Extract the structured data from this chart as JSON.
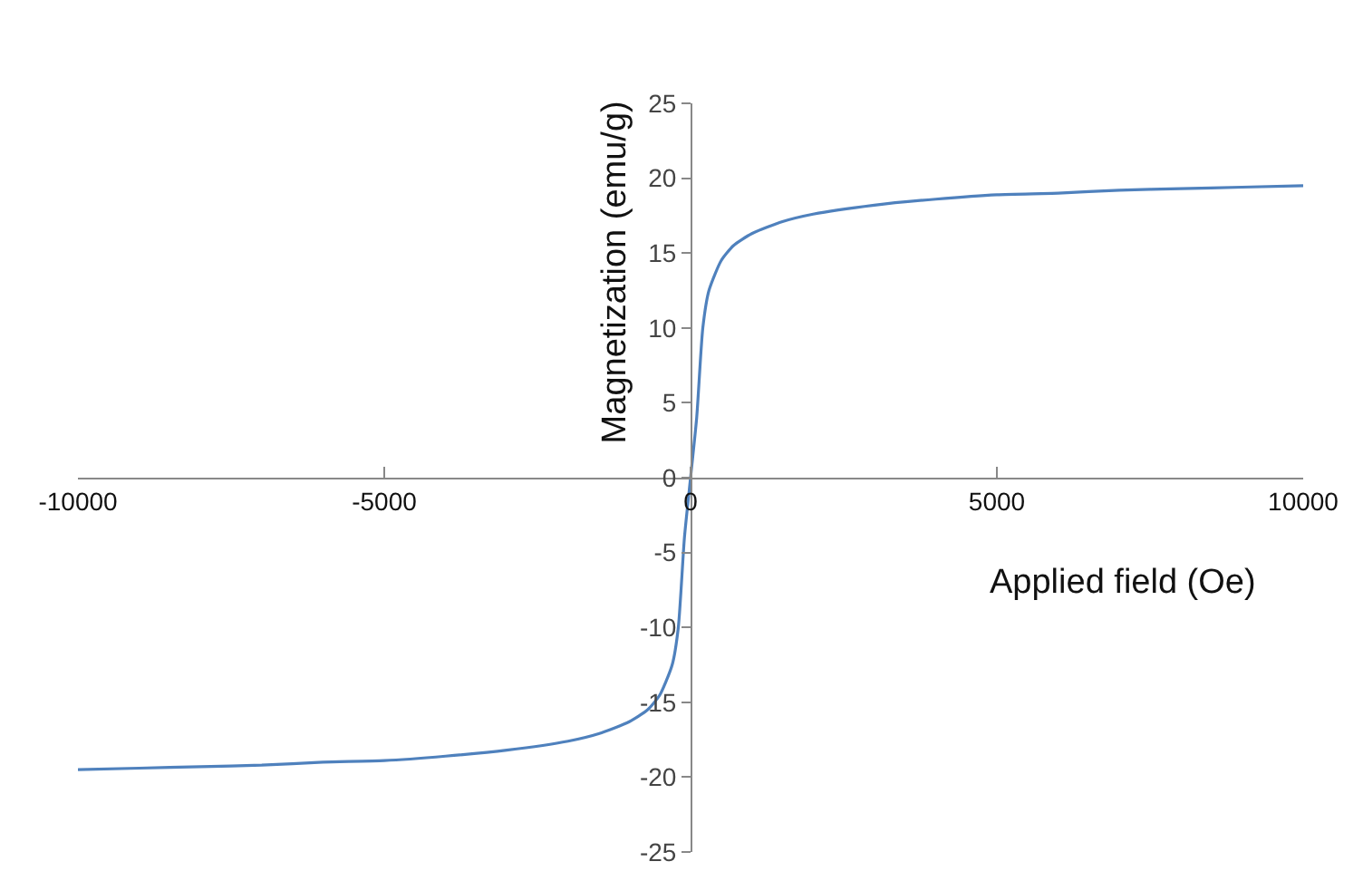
{
  "chart_data": {
    "type": "line",
    "xlabel": "Applied field (Oe)",
    "ylabel": "Magnetization (emu/g)",
    "x": [
      -10000,
      -9000,
      -8000,
      -7000,
      -6000,
      -5000,
      -4000,
      -3000,
      -2000,
      -1500,
      -1000,
      -700,
      -500,
      -300,
      -200,
      -100,
      0,
      100,
      200,
      300,
      500,
      700,
      1000,
      1500,
      2000,
      3000,
      4000,
      5000,
      6000,
      7000,
      8000,
      9000,
      10000
    ],
    "series": [
      {
        "color": "#4f81bd",
        "values": [
          -19.5,
          -19.4,
          -19.3,
          -19.2,
          -19.0,
          -18.9,
          -18.6,
          -18.2,
          -17.6,
          -17.1,
          -16.3,
          -15.5,
          -14.5,
          -12.5,
          -10,
          -4,
          0,
          4,
          10,
          12.5,
          14.5,
          15.5,
          16.3,
          17.1,
          17.6,
          18.2,
          18.6,
          18.9,
          19.0,
          19.2,
          19.3,
          19.4,
          19.5
        ]
      }
    ],
    "xlim": [
      -10000,
      10000
    ],
    "xticks": [
      -10000,
      -5000,
      0,
      5000,
      10000
    ],
    "ylim": [
      -25,
      25
    ],
    "yticks": [
      -25,
      -20,
      -15,
      -10,
      -5,
      0,
      5,
      10,
      15,
      20,
      25
    ],
    "legend": false,
    "marker": "none",
    "line_style": "solid"
  }
}
